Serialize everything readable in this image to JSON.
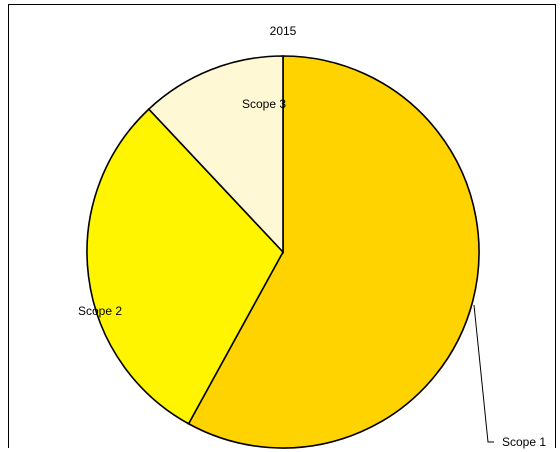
{
  "chart_data": {
    "type": "pie",
    "title": "2015",
    "slices": [
      {
        "label": "Scope 1",
        "value": 58,
        "color": "#FFD300"
      },
      {
        "label": "Scope 2",
        "value": 30,
        "color": "#FFF500"
      },
      {
        "label": "Scope 3",
        "value": 12,
        "color": "#FFF8D5"
      }
    ],
    "start": "12 o'clock",
    "direction": "clockwise",
    "legend": "none",
    "label_placement": "on-slice",
    "border_color": "#000000"
  }
}
